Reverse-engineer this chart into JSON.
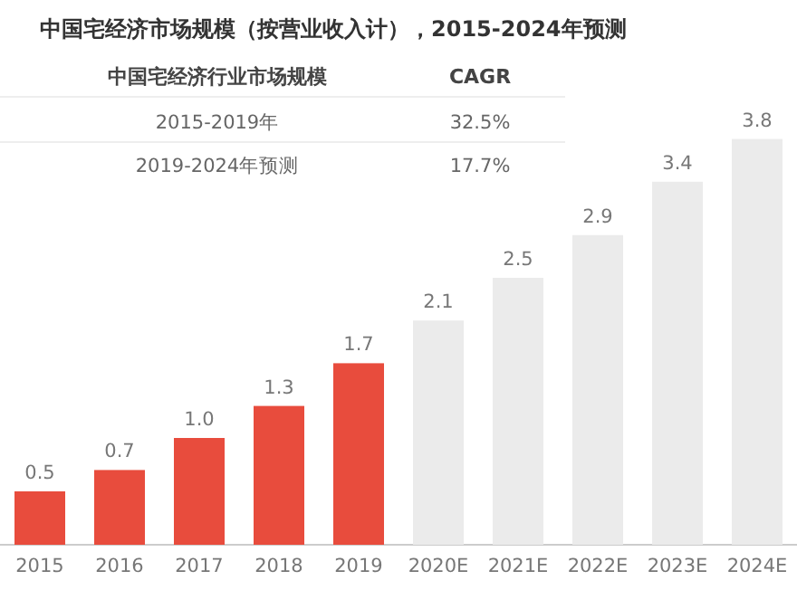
{
  "chart_data": {
    "type": "bar",
    "title": "中国宅经济市场规模（按营业收入计），2015-2024年预测",
    "annotations": [
      "中国宅经济行业市场规模",
      "CAGR",
      "2015-2019年",
      "32.5%",
      "2019-2024年预测",
      "17.7%"
    ],
    "categories": [
      "2015",
      "2016",
      "2017",
      "2018",
      "2019",
      "2020E",
      "2021E",
      "2022E",
      "2023E",
      "2024E"
    ],
    "values": [
      0.5,
      0.7,
      1.0,
      1.3,
      1.7,
      2.1,
      2.5,
      2.9,
      3.4,
      3.8
    ],
    "colors": [
      "#e84c3d",
      "#e84c3d",
      "#e84c3d",
      "#e84c3d",
      "#e84c3d",
      "#ebebeb",
      "#ebebeb",
      "#ebebeb",
      "#ebebeb",
      "#ebebeb"
    ],
    "value_labels": [
      "0.5",
      "0.7",
      "1.0",
      "1.3",
      "1.7",
      "2.1",
      "2.5",
      "2.9",
      "3.4",
      "3.8"
    ]
  }
}
